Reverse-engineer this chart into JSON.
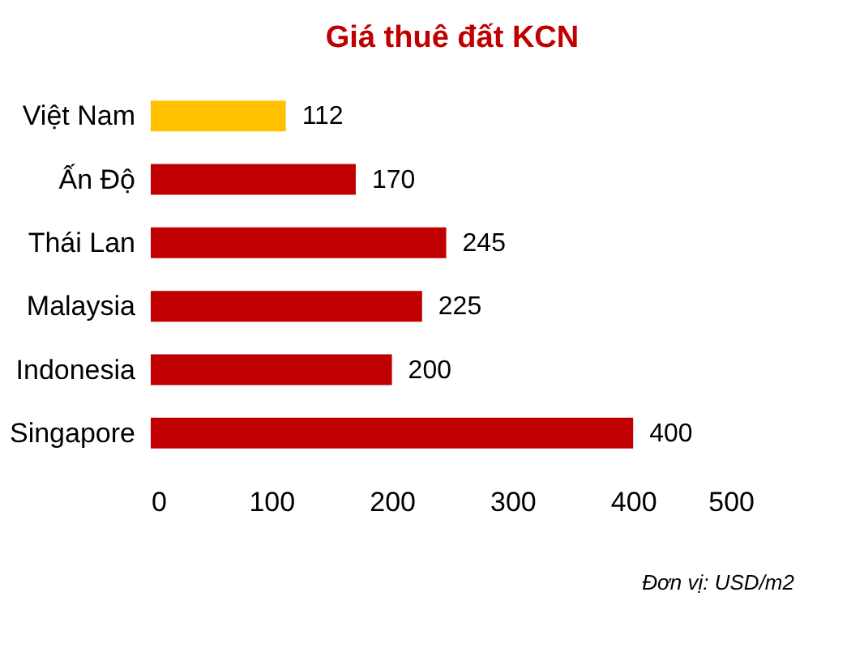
{
  "chart_data": {
    "type": "bar",
    "orientation": "horizontal",
    "title": "Giá thuê đất KCN",
    "categories": [
      "Việt Nam",
      "Ấn Độ",
      "Thái Lan",
      "Malaysia",
      "Indonesia",
      "Singapore"
    ],
    "values": [
      112,
      170,
      245,
      225,
      200,
      400
    ],
    "colors": [
      "#ffc000",
      "#c00000",
      "#c00000",
      "#c00000",
      "#c00000",
      "#c00000"
    ],
    "xlim": [
      0,
      500
    ],
    "xticks": [
      0,
      100,
      200,
      300,
      400,
      500
    ],
    "grid": false,
    "data_labels": true,
    "annotations": [
      "Đơn vị: USD/m2"
    ]
  }
}
